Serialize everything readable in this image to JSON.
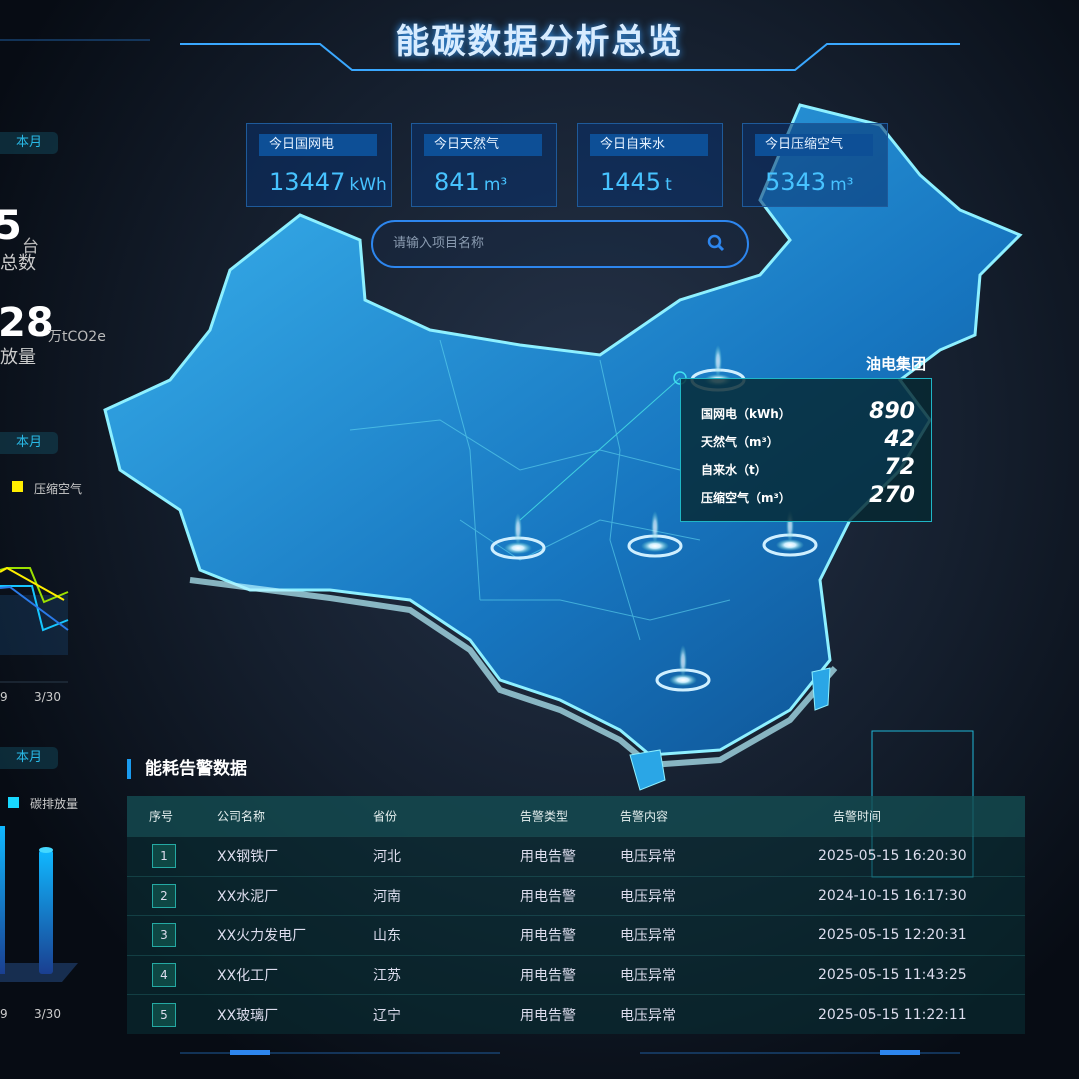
{
  "header": {
    "title": "能碳数据分析总览"
  },
  "stats": [
    {
      "label": "今日国网电",
      "value": "13447",
      "unit": "kWh"
    },
    {
      "label": "今日天然气",
      "value": "841",
      "unit": "m³"
    },
    {
      "label": "今日自来水",
      "value": "1445",
      "unit": "t"
    },
    {
      "label": "今日压缩空气",
      "value": "5343",
      "unit": "m³"
    }
  ],
  "search": {
    "placeholder": "请输入项目名称",
    "icon": "search-icon"
  },
  "left": {
    "tab1": "本月",
    "tab2": "本月",
    "tab3": "本月",
    "device_count": "5",
    "device_unit": "台",
    "device_label": "总数",
    "emission_value": "28",
    "emission_unit": "万tCO2e",
    "emission_label": "放量",
    "line_legend": "压缩空气",
    "line_ticks": [
      "9",
      "3/30"
    ],
    "bar_legend": "碳排放量",
    "bar_ticks": [
      "9",
      "3/30"
    ]
  },
  "tooltip": {
    "group": "油电集团",
    "rows": [
      {
        "label": "国网电（kWh）",
        "value": "890"
      },
      {
        "label": "天然气（m³）",
        "value": "42"
      },
      {
        "label": "自来水（t）",
        "value": "72"
      },
      {
        "label": "压缩空气（m³）",
        "value": "270"
      }
    ]
  },
  "alarms": {
    "title": "能耗告警数据",
    "columns": [
      "序号",
      "公司名称",
      "省份",
      "告警类型",
      "告警内容",
      "告警时间"
    ],
    "rows": [
      [
        "1",
        "XX钢铁厂",
        "河北",
        "用电告警",
        "电压异常",
        "2025-05-15 16:20:30"
      ],
      [
        "2",
        "XX水泥厂",
        "河南",
        "用电告警",
        "电压异常",
        "2024-10-15 16:17:30"
      ],
      [
        "3",
        "XX火力发电厂",
        "山东",
        "用电告警",
        "电压异常",
        "2025-05-15 12:20:31"
      ],
      [
        "4",
        "XX化工厂",
        "江苏",
        "用电告警",
        "电压异常",
        "2025-05-15 11:43:25"
      ],
      [
        "5",
        "XX玻璃厂",
        "辽宁",
        "用电告警",
        "电压异常",
        "2025-05-15 11:22:11"
      ]
    ]
  },
  "colors": {
    "accent": "#2d86ee",
    "map": "#1e9ce0",
    "tableBorder": "#24a9a3"
  }
}
